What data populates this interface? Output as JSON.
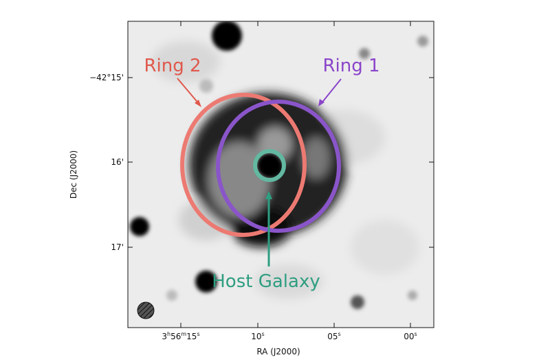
{
  "figure": {
    "x_axis": {
      "label": "RA (J2000)",
      "ticks": [
        {
          "h": "3",
          "m": "56",
          "s": "15"
        },
        {
          "s": "10"
        },
        {
          "s": "05"
        },
        {
          "s": "00"
        }
      ]
    },
    "y_axis": {
      "label": "Dec (J2000)",
      "ticks": [
        "−42°15'",
        "16'",
        "17'"
      ]
    },
    "colormap": "grayscale (inverted)",
    "annotations": {
      "ring1": {
        "label": "Ring 1",
        "color": "#8a55c9"
      },
      "ring2": {
        "label": "Ring 2",
        "color": "#ec7a72"
      },
      "host": {
        "label": "Host Galaxy",
        "color": "#3aa78c"
      }
    },
    "beam": "hatched-ellipse"
  }
}
